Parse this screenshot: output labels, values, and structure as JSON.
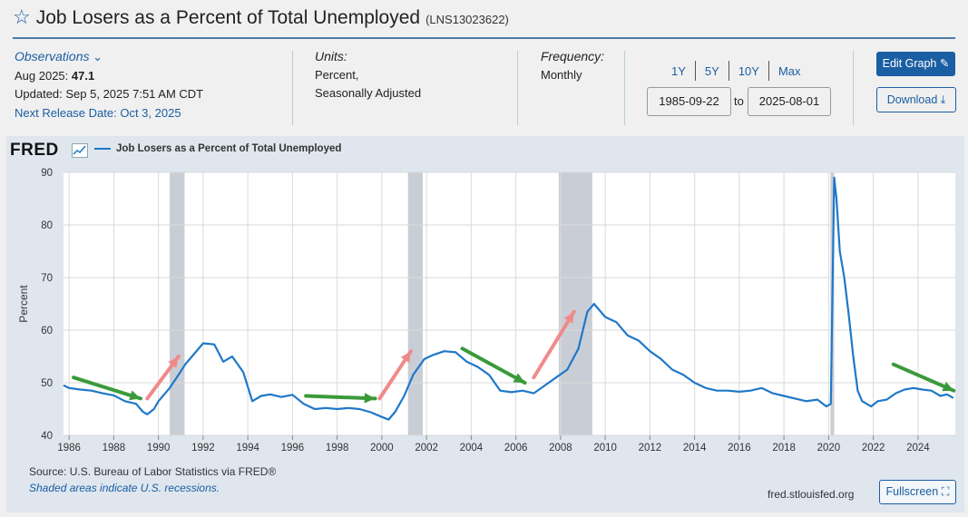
{
  "header": {
    "title": "Job Losers as a Percent of Total Unemployed",
    "series_id": "(LNS13023622)"
  },
  "observations": {
    "label": "Observations",
    "latest_prefix": "Aug 2025:",
    "latest_value": "47.1",
    "updated": "Updated: Sep 5, 2025 7:51 AM CDT",
    "next_release": "Next Release Date: Oct 3, 2025"
  },
  "units": {
    "label": "Units:",
    "line1": "Percent,",
    "line2": "Seasonally Adjusted"
  },
  "frequency": {
    "label": "Frequency:",
    "value": "Monthly"
  },
  "range_buttons": [
    "1Y",
    "5Y",
    "10Y",
    "Max"
  ],
  "date_range": {
    "start": "1985-09-22",
    "to_label": "to",
    "end": "2025-08-01"
  },
  "actions": {
    "edit": "Edit Graph",
    "download": "Download",
    "fullscreen": "Fullscreen"
  },
  "footer": {
    "source": "Source: U.S. Bureau of Labor Statistics via FRED®",
    "note": "Shaded areas indicate U.S. recessions.",
    "site": "fred.stlouisfed.org"
  },
  "colors": {
    "series": "#1f78c9",
    "recession": "#c9ced6",
    "accent": "#1a5ea3",
    "green_arrow": "#3a9a3a",
    "red_arrow": "#f08a8a"
  },
  "chart_data": {
    "type": "line",
    "logo": "FRED",
    "title": "",
    "legend": "Job Losers as a Percent of Total Unemployed",
    "xlabel": "",
    "ylabel": "Percent",
    "xlim": [
      1985.75,
      2025.67
    ],
    "ylim": [
      40,
      90
    ],
    "yticks": [
      40,
      50,
      60,
      70,
      80,
      90
    ],
    "xticks": [
      1986,
      1988,
      1990,
      1992,
      1994,
      1996,
      1998,
      2000,
      2002,
      2004,
      2006,
      2008,
      2010,
      2012,
      2014,
      2016,
      2018,
      2020,
      2022,
      2024
    ],
    "grid": true,
    "recessions": [
      [
        1990.5,
        1991.17
      ],
      [
        2001.17,
        2001.83
      ],
      [
        2007.92,
        2009.42
      ],
      [
        2020.08,
        2020.25
      ]
    ],
    "series": [
      {
        "name": "Job Losers as a Percent of Total Unemployed",
        "x": [
          1985.75,
          1986.0,
          1986.5,
          1987.0,
          1987.5,
          1988.0,
          1988.5,
          1989.0,
          1989.3,
          1989.5,
          1989.8,
          1990.0,
          1990.5,
          1990.9,
          1991.2,
          1991.5,
          1992.0,
          1992.5,
          1992.9,
          1993.3,
          1993.8,
          1994.2,
          1994.6,
          1995.0,
          1995.5,
          1996.0,
          1996.5,
          1997.0,
          1997.5,
          1998.0,
          1998.5,
          1999.0,
          1999.5,
          2000.0,
          2000.3,
          2000.6,
          2001.0,
          2001.4,
          2001.9,
          2002.3,
          2002.8,
          2003.3,
          2003.8,
          2004.3,
          2004.8,
          2005.3,
          2005.8,
          2006.3,
          2006.8,
          2007.3,
          2007.8,
          2008.3,
          2008.8,
          2009.2,
          2009.5,
          2010.0,
          2010.5,
          2011.0,
          2011.5,
          2012.0,
          2012.5,
          2013.0,
          2013.5,
          2014.0,
          2014.5,
          2015.0,
          2015.5,
          2016.0,
          2016.5,
          2017.0,
          2017.5,
          2018.0,
          2018.5,
          2019.0,
          2019.5,
          2019.9,
          2020.1,
          2020.25,
          2020.35,
          2020.5,
          2020.7,
          2020.9,
          2021.1,
          2021.3,
          2021.5,
          2021.7,
          2021.9,
          2022.2,
          2022.6,
          2023.0,
          2023.4,
          2023.8,
          2024.2,
          2024.6,
          2025.0,
          2025.3,
          2025.58
        ],
        "y": [
          49.5,
          49.0,
          48.7,
          48.5,
          48.0,
          47.6,
          46.5,
          46.0,
          44.5,
          44.0,
          45.0,
          46.5,
          49.0,
          51.5,
          53.5,
          55.0,
          57.5,
          57.3,
          54.0,
          55.0,
          52.0,
          46.5,
          47.5,
          47.8,
          47.3,
          47.7,
          46.0,
          45.0,
          45.2,
          45.0,
          45.2,
          45.0,
          44.4,
          43.5,
          43.0,
          44.5,
          47.5,
          51.5,
          54.5,
          55.3,
          56.0,
          55.8,
          54.0,
          53.0,
          51.5,
          48.5,
          48.2,
          48.5,
          48.0,
          49.5,
          51.0,
          52.5,
          56.5,
          63.5,
          65.0,
          62.5,
          61.5,
          59.0,
          58.0,
          56.0,
          54.5,
          52.5,
          51.5,
          50.0,
          49.0,
          48.5,
          48.5,
          48.3,
          48.5,
          49.0,
          48.0,
          47.5,
          47.0,
          46.5,
          46.8,
          45.5,
          46.0,
          89.0,
          85.0,
          75.0,
          70.0,
          63.0,
          55.0,
          48.5,
          46.5,
          46.0,
          45.5,
          46.5,
          46.8,
          48.0,
          48.7,
          49.0,
          48.7,
          48.5,
          47.5,
          47.8,
          47.1
        ]
      }
    ],
    "annotations": {
      "green_arrows": [
        [
          1986.2,
          51.0,
          1989.2,
          47.0
        ],
        [
          1996.6,
          47.5,
          1999.7,
          47.0
        ],
        [
          2003.6,
          56.5,
          2006.4,
          50.0
        ],
        [
          2022.9,
          53.5,
          2025.6,
          48.5
        ]
      ],
      "red_arrows": [
        [
          1989.5,
          47.0,
          1990.9,
          55.0
        ],
        [
          1999.9,
          47.0,
          2001.3,
          56.0
        ],
        [
          2006.8,
          51.0,
          2008.6,
          63.5
        ]
      ]
    }
  }
}
